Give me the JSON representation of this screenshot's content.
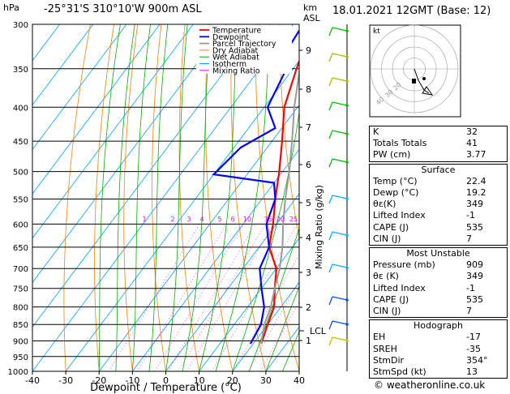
{
  "header": {
    "hpa_unit": "hPa",
    "location": "-25°31'S  310°10'W  900m  ASL",
    "km_unit": "km",
    "asl_unit": "ASL",
    "datetime": "18.01.2021  12GMT  (Base: 12)"
  },
  "hodograph": {
    "unit": "kt",
    "ring_labels": [
      "40",
      "30",
      "20"
    ]
  },
  "chart_data": {
    "type": "line",
    "xlabel": "Dewpoint / Temperature (°C)",
    "ylabel": "",
    "mixing_ratio_label": "Mixing Ratio (g/kg)",
    "x_ticks": [
      "-40",
      "-30",
      "-20",
      "-10",
      "0",
      "10",
      "20",
      "30",
      "40"
    ],
    "xlim": [
      -40,
      40
    ],
    "pressure_levels": [
      "300",
      "350",
      "400",
      "450",
      "500",
      "550",
      "600",
      "650",
      "700",
      "750",
      "800",
      "850",
      "900",
      "950",
      "1000"
    ],
    "km_ticks": [
      "9",
      "8",
      "7",
      "6",
      "5",
      "4",
      "3",
      "2",
      "1"
    ],
    "lcl_label": "LCL",
    "mixing_ratio_values": [
      "1",
      "2",
      "3",
      "4",
      "5",
      "6",
      "10",
      "15",
      "20",
      "25"
    ],
    "legend": [
      {
        "name": "Temperature",
        "color": "#ff0000"
      },
      {
        "name": "Dewpoint",
        "color": "#0000ff"
      },
      {
        "name": "Parcel Trajectory",
        "color": "#999999"
      },
      {
        "name": "Dry Adiabat",
        "color": "#ff8000"
      },
      {
        "name": "Wet Adiabat",
        "color": "#00b000"
      },
      {
        "name": "Isotherm",
        "color": "#00a0ff"
      },
      {
        "name": "Mixing Ratio",
        "color": "#ff00ff"
      }
    ],
    "series": [
      {
        "name": "Temperature",
        "points": [
          [
            -34,
            300
          ],
          [
            -29,
            350
          ],
          [
            -24,
            400
          ],
          [
            -17,
            450
          ],
          [
            -11,
            500
          ],
          [
            -6,
            550
          ],
          [
            -1,
            600
          ],
          [
            3,
            650
          ],
          [
            10,
            700
          ],
          [
            14,
            750
          ],
          [
            18,
            800
          ],
          [
            20,
            850
          ],
          [
            22.4,
            909
          ]
        ]
      },
      {
        "name": "Dewpoint",
        "points": [
          [
            -37,
            300
          ],
          [
            -36,
            330
          ],
          [
            -32,
            350
          ],
          [
            -29,
            400
          ],
          [
            -22,
            430
          ],
          [
            -28,
            460
          ],
          [
            -30,
            505
          ],
          [
            -10,
            520
          ],
          [
            -6,
            550
          ],
          [
            -3,
            600
          ],
          [
            3,
            650
          ],
          [
            5,
            700
          ],
          [
            10,
            750
          ],
          [
            15,
            800
          ],
          [
            18,
            850
          ],
          [
            19.2,
            909
          ]
        ]
      },
      {
        "name": "Parcel Trajectory",
        "points": [
          [
            -28,
            350
          ],
          [
            -21,
            400
          ],
          [
            -14,
            450
          ],
          [
            -8,
            500
          ],
          [
            -3,
            550
          ],
          [
            2,
            600
          ],
          [
            7,
            650
          ],
          [
            11,
            700
          ],
          [
            14,
            750
          ],
          [
            17,
            800
          ],
          [
            19,
            850
          ],
          [
            22.4,
            909
          ]
        ]
      }
    ]
  },
  "indices": [
    {
      "label": "K",
      "value": "32"
    },
    {
      "label": "Totals Totals",
      "value": "41"
    },
    {
      "label": "PW (cm)",
      "value": "3.77"
    }
  ],
  "surface": {
    "title": "Surface",
    "rows": [
      {
        "label": "Temp (°C)",
        "value": "22.4"
      },
      {
        "label": "Dewp (°C)",
        "value": "19.2"
      },
      {
        "label": "θε(K)",
        "value": "349"
      },
      {
        "label": "Lifted Index",
        "value": "-1"
      },
      {
        "label": "CAPE (J)",
        "value": "535"
      },
      {
        "label": "CIN (J)",
        "value": "7"
      }
    ]
  },
  "most_unstable": {
    "title": "Most Unstable",
    "rows": [
      {
        "label": "Pressure (mb)",
        "value": "909"
      },
      {
        "label": "θε (K)",
        "value": "349"
      },
      {
        "label": "Lifted Index",
        "value": "-1"
      },
      {
        "label": "CAPE (J)",
        "value": "535"
      },
      {
        "label": "CIN (J)",
        "value": "7"
      }
    ]
  },
  "hodograph_stats": {
    "title": "Hodograph",
    "rows": [
      {
        "label": "EH",
        "value": "-17"
      },
      {
        "label": "SREH",
        "value": "-35"
      },
      {
        "label": "StmDir",
        "value": "354°"
      },
      {
        "label": "StmSpd (kt)",
        "value": "13"
      }
    ]
  },
  "footer": "© weatheronline.co.uk"
}
